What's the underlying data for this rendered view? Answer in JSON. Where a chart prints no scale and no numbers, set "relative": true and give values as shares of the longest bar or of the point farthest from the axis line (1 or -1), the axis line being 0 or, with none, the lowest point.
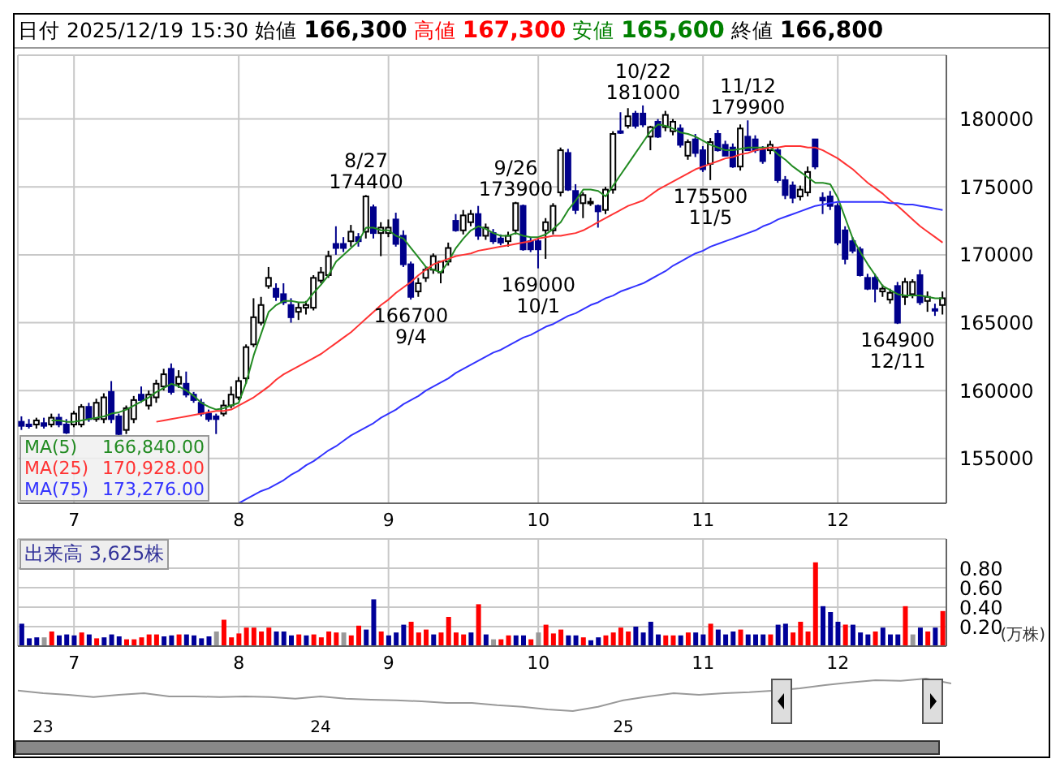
{
  "chart_data": [
    {
      "type": "candlestick",
      "title": "日付 2025/12/19 15:30 始値 166,300 高値 167,300 安値 165,600 終値 166,800",
      "categories": [
        null,
        null,
        null,
        null,
        null,
        null,
        null,
        "7",
        null,
        null,
        null,
        null,
        null,
        null,
        null,
        null,
        null,
        null,
        null,
        null,
        null,
        null,
        null,
        null,
        null,
        null,
        null,
        null,
        null,
        "8",
        null,
        null,
        null,
        null,
        null,
        null,
        null,
        null,
        null,
        null,
        null,
        null,
        null,
        null,
        null,
        null,
        null,
        null,
        null,
        "9",
        null,
        null,
        null,
        null,
        null,
        null,
        null,
        null,
        null,
        null,
        null,
        null,
        null,
        null,
        null,
        null,
        null,
        null,
        null,
        "10",
        null,
        null,
        null,
        null,
        null,
        null,
        null,
        null,
        null,
        null,
        null,
        null,
        null,
        null,
        null,
        null,
        null,
        null,
        null,
        null,
        null,
        "11",
        null,
        null,
        null,
        null,
        null,
        null,
        null,
        null,
        null,
        null,
        null,
        null,
        null,
        null,
        null,
        null,
        null,
        "12",
        null,
        null,
        null,
        null,
        null,
        null,
        null,
        null,
        null,
        null,
        null,
        null,
        null,
        null
      ],
      "ohlc": [
        [
          157700,
          158100,
          157100,
          157400
        ],
        [
          157500,
          157900,
          157200,
          157400
        ],
        [
          157500,
          158000,
          157200,
          157800
        ],
        [
          157600,
          158000,
          157200,
          157400
        ],
        [
          157500,
          158300,
          157300,
          158000
        ],
        [
          158000,
          158300,
          157300,
          157500
        ],
        [
          157500,
          157900,
          156800,
          156900
        ],
        [
          157500,
          158500,
          157300,
          158300
        ],
        [
          157500,
          159000,
          157300,
          158800
        ],
        [
          158800,
          159100,
          157700,
          157900
        ],
        [
          157900,
          159400,
          157700,
          159100
        ],
        [
          157900,
          159800,
          157600,
          159500
        ],
        [
          159900,
          160700,
          157600,
          157900
        ],
        [
          158100,
          158300,
          156600,
          156800
        ],
        [
          157100,
          158900,
          156800,
          158700
        ],
        [
          157900,
          159600,
          157600,
          159300
        ],
        [
          159700,
          160300,
          159100,
          159300
        ],
        [
          158900,
          160000,
          158600,
          159700
        ],
        [
          159500,
          160800,
          159100,
          160500
        ],
        [
          160300,
          161600,
          160000,
          161200
        ],
        [
          161600,
          162000,
          159700,
          159900
        ],
        [
          160500,
          161500,
          160200,
          161000
        ],
        [
          160500,
          161400,
          159500,
          159700
        ],
        [
          159700,
          159900,
          159100,
          159300
        ],
        [
          159100,
          159400,
          158100,
          158300
        ],
        [
          158300,
          158600,
          157700,
          157900
        ],
        [
          158100,
          158300,
          156800,
          157900
        ],
        [
          158300,
          159300,
          158100,
          158900
        ],
        [
          158900,
          160300,
          158700,
          159700
        ],
        [
          159500,
          161000,
          159300,
          160700
        ],
        [
          160900,
          163400,
          160500,
          163200
        ],
        [
          163400,
          166800,
          163200,
          165400
        ],
        [
          165000,
          166900,
          164800,
          166300
        ],
        [
          167700,
          169100,
          167500,
          168300
        ],
        [
          167500,
          167900,
          166600,
          166900
        ],
        [
          167100,
          167900,
          166300,
          166500
        ],
        [
          166300,
          166800,
          165000,
          165400
        ],
        [
          165800,
          166500,
          165200,
          166100
        ],
        [
          166100,
          166600,
          165600,
          166300
        ],
        [
          166100,
          168500,
          165900,
          168300
        ],
        [
          168100,
          169100,
          167900,
          168700
        ],
        [
          168500,
          170300,
          168300,
          169900
        ],
        [
          170800,
          172100,
          170000,
          170500
        ],
        [
          170800,
          171300,
          170200,
          170500
        ],
        [
          171000,
          172200,
          170600,
          171700
        ],
        [
          171300,
          171600,
          170600,
          171000
        ],
        [
          171700,
          174400,
          171200,
          174300
        ],
        [
          173500,
          173700,
          171200,
          171600
        ],
        [
          171600,
          172400,
          169900,
          172000
        ],
        [
          171600,
          172600,
          171300,
          172000
        ],
        [
          172600,
          173100,
          170600,
          170800
        ],
        [
          171400,
          171800,
          169100,
          169300
        ],
        [
          169300,
          169500,
          166700,
          166900
        ],
        [
          167300,
          168300,
          166900,
          167900
        ],
        [
          168300,
          169100,
          168000,
          168900
        ],
        [
          168900,
          170100,
          168600,
          169900
        ],
        [
          168700,
          169500,
          167900,
          169500
        ],
        [
          169500,
          170900,
          169200,
          170500
        ],
        [
          172500,
          173000,
          171700,
          171800
        ],
        [
          171800,
          173300,
          171500,
          172900
        ],
        [
          172400,
          173300,
          172100,
          173000
        ],
        [
          173000,
          173600,
          171100,
          171400
        ],
        [
          171400,
          172300,
          171100,
          172000
        ],
        [
          171600,
          171900,
          170800,
          171000
        ],
        [
          171200,
          171500,
          170700,
          170900
        ],
        [
          171000,
          171700,
          170600,
          171400
        ],
        [
          171800,
          173900,
          171500,
          173800
        ],
        [
          173600,
          173700,
          170300,
          170400
        ],
        [
          171000,
          171300,
          170200,
          170400
        ],
        [
          171000,
          171300,
          169000,
          170400
        ],
        [
          171800,
          172700,
          169700,
          172400
        ],
        [
          171800,
          173800,
          171500,
          173600
        ],
        [
          174600,
          177900,
          174300,
          177700
        ],
        [
          177500,
          177800,
          174700,
          174800
        ],
        [
          174700,
          175200,
          173000,
          173300
        ],
        [
          173800,
          174600,
          172700,
          174400
        ],
        [
          173900,
          174200,
          173600,
          173900
        ],
        [
          173600,
          173700,
          172000,
          173200
        ],
        [
          173300,
          175000,
          173000,
          174800
        ],
        [
          174800,
          179100,
          174500,
          178900
        ],
        [
          179100,
          180500,
          178900,
          179000
        ],
        [
          179500,
          180800,
          179300,
          180200
        ],
        [
          180400,
          180600,
          179300,
          179500
        ],
        [
          180400,
          181000,
          179400,
          179600
        ],
        [
          178700,
          179500,
          177700,
          179400
        ],
        [
          179800,
          180000,
          178600,
          178700
        ],
        [
          179400,
          180600,
          179100,
          180300
        ],
        [
          179100,
          180000,
          178800,
          179800
        ],
        [
          179300,
          179600,
          177900,
          178100
        ],
        [
          177300,
          178500,
          177000,
          178300
        ],
        [
          178500,
          178900,
          177200,
          177500
        ],
        [
          177700,
          178000,
          176100,
          176300
        ],
        [
          176700,
          178600,
          175500,
          178300
        ],
        [
          178900,
          179200,
          177600,
          177700
        ],
        [
          178100,
          178400,
          177300,
          177300
        ],
        [
          177900,
          178200,
          176400,
          176500
        ],
        [
          176500,
          179600,
          176200,
          179300
        ],
        [
          178700,
          179900,
          177700,
          177700
        ],
        [
          178500,
          178800,
          177500,
          177700
        ],
        [
          177700,
          178000,
          176700,
          176900
        ],
        [
          177700,
          178400,
          177400,
          178100
        ],
        [
          177700,
          177900,
          175300,
          175500
        ],
        [
          175500,
          175800,
          174100,
          174400
        ],
        [
          175100,
          175400,
          173800,
          174200
        ],
        [
          174300,
          175100,
          174000,
          174800
        ],
        [
          174600,
          176500,
          174300,
          176100
        ],
        [
          178500,
          178500,
          176300,
          176500
        ],
        [
          174200,
          174600,
          173000,
          174000
        ],
        [
          174300,
          174700,
          173300,
          173600
        ],
        [
          173600,
          173800,
          170700,
          170900
        ],
        [
          171800,
          172100,
          169300,
          169700
        ],
        [
          171000,
          171300,
          170100,
          170300
        ],
        [
          170400,
          170600,
          168400,
          168500
        ],
        [
          168300,
          168600,
          167400,
          167500
        ],
        [
          168300,
          168600,
          166500,
          167500
        ],
        [
          167300,
          167800,
          166900,
          167500
        ],
        [
          166700,
          167500,
          166400,
          167200
        ],
        [
          167700,
          168000,
          164900,
          165000
        ],
        [
          166900,
          168300,
          166300,
          168000
        ],
        [
          167100,
          168200,
          166800,
          168000
        ],
        [
          168500,
          168900,
          166300,
          166500
        ],
        [
          166600,
          167300,
          165800,
          166900
        ],
        [
          166000,
          166400,
          165500,
          165900
        ],
        [
          166300,
          167300,
          165600,
          166800
        ]
      ],
      "colors": [
        "#00008b",
        "#00008b",
        "#ffffff",
        "#00008b",
        "#ffffff",
        "#00008b",
        "#00008b",
        "#ffffff",
        "#ffffff",
        "#00008b",
        "#ffffff",
        "#ffffff",
        "#00008b",
        "#00008b",
        "#ffffff",
        "#ffffff",
        "#00008b",
        "#ffffff",
        "#ffffff",
        "#ffffff",
        "#00008b",
        "#ffffff",
        "#00008b",
        "#00008b",
        "#00008b",
        "#00008b",
        "#00008b",
        "#ffffff",
        "#ffffff",
        "#ffffff",
        "#ffffff",
        "#ffffff",
        "#ffffff",
        "#ffffff",
        "#00008b",
        "#00008b",
        "#00008b",
        "#ffffff",
        "#ffffff",
        "#ffffff",
        "#ffffff",
        "#ffffff",
        "#00008b",
        "#00008b",
        "#ffffff",
        "#00008b",
        "#ffffff",
        "#00008b",
        "#ffffff",
        "#ffffff",
        "#00008b",
        "#00008b",
        "#00008b",
        "#ffffff",
        "#ffffff",
        "#ffffff",
        "#ffffff",
        "#ffffff",
        "#00008b",
        "#ffffff",
        "#ffffff",
        "#00008b",
        "#ffffff",
        "#00008b",
        "#00008b",
        "#ffffff",
        "#ffffff",
        "#00008b",
        "#00008b",
        "#00008b",
        "#ffffff",
        "#ffffff",
        "#ffffff",
        "#00008b",
        "#00008b",
        "#ffffff",
        "#ffffff",
        "#00008b",
        "#ffffff",
        "#ffffff",
        "#00008b",
        "#ffffff",
        "#00008b",
        "#00008b",
        "#ffffff",
        "#00008b",
        "#ffffff",
        "#ffffff",
        "#00008b",
        "#ffffff",
        "#00008b",
        "#00008b",
        "#ffffff",
        "#00008b",
        "#00008b",
        "#00008b",
        "#ffffff",
        "#00008b",
        "#00008b",
        "#00008b",
        "#ffffff",
        "#00008b",
        "#00008b",
        "#00008b",
        "#ffffff",
        "#ffffff",
        "#00008b",
        "#00008b",
        "#00008b",
        "#00008b",
        "#00008b",
        "#00008b",
        "#00008b",
        "#00008b",
        "#00008b",
        "#ffffff",
        "#ffffff",
        "#00008b",
        "#ffffff",
        "#ffffff",
        "#00008b",
        "#ffffff",
        "#00008b",
        "#ffffff"
      ],
      "series": [
        {
          "type": "line",
          "name": "MA(5)",
          "color": "#228b22",
          "values": [
            null,
            null,
            null,
            null,
            157800,
            157800,
            157700,
            157700,
            157800,
            157900,
            158000,
            158100,
            158300,
            158400,
            158600,
            158900,
            159200,
            159500,
            159900,
            160200,
            160500,
            160300,
            160000,
            159600,
            159100,
            158800,
            158600,
            158700,
            158900,
            159100,
            160600,
            162600,
            164200,
            165800,
            166300,
            166600,
            166600,
            166500,
            166500,
            167200,
            167800,
            168500,
            169500,
            170000,
            170500,
            171000,
            172000,
            172000,
            171800,
            171800,
            171400,
            171200,
            170500,
            169800,
            169100,
            168900,
            168700,
            169500,
            170500,
            171200,
            171800,
            172100,
            171900,
            171600,
            171400,
            171400,
            171600,
            171400,
            171300,
            171300,
            171500,
            171900,
            172400,
            173300,
            174000,
            174800,
            174800,
            174700,
            174300,
            175100,
            175900,
            176700,
            177500,
            178300,
            179100,
            179600,
            179500,
            179300,
            179000,
            178900,
            178700,
            178400,
            178100,
            177900,
            177700,
            177700,
            177800,
            177900,
            177900,
            177900,
            177900,
            177400,
            177000,
            176500,
            176100,
            175700,
            175300,
            175300,
            175200,
            174200,
            172700,
            171200,
            170200,
            169300,
            168500,
            167700,
            167400,
            167100,
            167000,
            167000,
            167000,
            166900,
            166800,
            166800
          ]
        },
        {
          "type": "line",
          "name": "MA(25)",
          "color": "#ff3333",
          "values": [
            null,
            null,
            null,
            null,
            null,
            null,
            null,
            null,
            null,
            null,
            null,
            null,
            null,
            null,
            null,
            null,
            null,
            null,
            157700,
            157800,
            157900,
            158000,
            158100,
            158200,
            158300,
            158400,
            158500,
            158500,
            158600,
            158900,
            159200,
            159500,
            159900,
            160300,
            160800,
            161200,
            161500,
            161800,
            162100,
            162400,
            162700,
            163100,
            163500,
            163900,
            164300,
            164800,
            165300,
            165800,
            166300,
            166700,
            167200,
            167600,
            168000,
            168500,
            168900,
            169300,
            169500,
            169700,
            169900,
            170000,
            170100,
            170300,
            170400,
            170500,
            170600,
            170700,
            170800,
            170900,
            171000,
            171200,
            171300,
            171400,
            171400,
            171500,
            171600,
            171800,
            172100,
            172400,
            172700,
            173000,
            173300,
            173600,
            173800,
            174000,
            174400,
            174800,
            175100,
            175400,
            175700,
            176000,
            176300,
            176500,
            176700,
            176900,
            177100,
            177200,
            177400,
            177500,
            177700,
            177800,
            177900,
            177900,
            178000,
            178000,
            178000,
            177900,
            177900,
            177700,
            177400,
            177100,
            176700,
            176300,
            175800,
            175300,
            174900,
            174500,
            174000,
            173600,
            173100,
            172600,
            172100,
            171700,
            171300,
            170900
          ]
        },
        {
          "type": "line",
          "name": "MA(75)",
          "color": "#3333ff",
          "values": [
            null,
            null,
            null,
            null,
            null,
            null,
            null,
            null,
            null,
            null,
            null,
            null,
            null,
            null,
            null,
            null,
            null,
            null,
            null,
            null,
            null,
            null,
            null,
            null,
            null,
            null,
            null,
            null,
            null,
            151700,
            152000,
            152300,
            152600,
            152800,
            153100,
            153400,
            153800,
            154100,
            154500,
            154800,
            155200,
            155600,
            155900,
            156300,
            156700,
            157000,
            157300,
            157600,
            158000,
            158300,
            158600,
            159000,
            159300,
            159600,
            160000,
            160300,
            160600,
            160900,
            161300,
            161600,
            161900,
            162200,
            162500,
            162800,
            163000,
            163300,
            163600,
            163900,
            164100,
            164400,
            164700,
            164900,
            165200,
            165500,
            165700,
            166000,
            166300,
            166500,
            166800,
            167000,
            167300,
            167500,
            167700,
            167900,
            168200,
            168500,
            168800,
            169200,
            169500,
            169800,
            170100,
            170300,
            170600,
            170800,
            171000,
            171200,
            171400,
            171600,
            171800,
            172100,
            172300,
            172600,
            172800,
            173000,
            173200,
            173400,
            173600,
            173700,
            173800,
            173900,
            173900,
            173900,
            173900,
            173900,
            173900,
            173900,
            173800,
            173800,
            173700,
            173700,
            173600,
            173500,
            173400,
            173300
          ]
        }
      ],
      "annotations": [
        "166,840.00",
        "170,928.00",
        "173,276.00",
        {
          "text": "8/27\n174400",
          "y": 174400
        },
        {
          "text": "166700\n9/4",
          "y": 166700
        },
        {
          "text": "9/26\n173900",
          "y": 173900
        },
        {
          "text": "169000\n10/1",
          "y": 169000
        },
        {
          "text": "10/22\n181000",
          "y": 181000
        },
        {
          "text": "175500\n11/5",
          "y": 175500
        },
        {
          "text": "11/12\n179900",
          "y": 179900
        },
        {
          "text": "164900\n12/11",
          "y": 164900
        }
      ],
      "ylim": [
        151700,
        184700
      ],
      "yticks": [
        155000,
        160000,
        165000,
        170000,
        175000,
        180000
      ],
      "grid": true,
      "legend": "bottom left"
    },
    {
      "type": "bar",
      "title": "出来高 3,625株",
      "ylabel": "(万株)",
      "categories": [
        null,
        null,
        null,
        null,
        null,
        null,
        null,
        "7",
        null,
        null,
        null,
        null,
        null,
        null,
        null,
        null,
        null,
        null,
        null,
        null,
        null,
        null,
        null,
        null,
        null,
        null,
        null,
        null,
        null,
        "8",
        null,
        null,
        null,
        null,
        null,
        null,
        null,
        null,
        null,
        null,
        null,
        null,
        null,
        null,
        null,
        null,
        null,
        null,
        null,
        "9",
        null,
        null,
        null,
        null,
        null,
        null,
        null,
        null,
        null,
        null,
        null,
        null,
        null,
        null,
        null,
        null,
        null,
        null,
        null,
        "10",
        null,
        null,
        null,
        null,
        null,
        null,
        null,
        null,
        null,
        null,
        null,
        null,
        null,
        null,
        null,
        null,
        null,
        null,
        null,
        null,
        null,
        "11",
        null,
        null,
        null,
        null,
        null,
        null,
        null,
        null,
        null,
        null,
        null,
        null,
        null,
        null,
        null,
        null,
        null,
        "12",
        null,
        null,
        null,
        null,
        null,
        null,
        null,
        null,
        null,
        null,
        null,
        null,
        null,
        null
      ],
      "values": [
        0.23,
        0.08,
        0.09,
        0.09,
        0.15,
        0.11,
        0.12,
        0.11,
        0.14,
        0.12,
        0.08,
        0.09,
        0.12,
        0.1,
        0.07,
        0.07,
        0.09,
        0.12,
        0.12,
        0.1,
        0.11,
        0.12,
        0.12,
        0.11,
        0.08,
        0.1,
        0.15,
        0.27,
        0.09,
        0.13,
        0.19,
        0.19,
        0.15,
        0.19,
        0.15,
        0.15,
        0.11,
        0.12,
        0.11,
        0.12,
        0.09,
        0.15,
        0.14,
        0.14,
        0.11,
        0.21,
        0.17,
        0.48,
        0.15,
        0.11,
        0.14,
        0.22,
        0.25,
        0.14,
        0.17,
        0.12,
        0.14,
        0.3,
        0.14,
        0.12,
        0.14,
        0.43,
        0.12,
        0.07,
        0.07,
        0.11,
        0.11,
        0.11,
        0.07,
        0.14,
        0.22,
        0.13,
        0.17,
        0.11,
        0.11,
        0.09,
        0.06,
        0.09,
        0.11,
        0.14,
        0.19,
        0.15,
        0.2,
        0.14,
        0.25,
        0.12,
        0.11,
        0.11,
        0.11,
        0.14,
        0.14,
        0.12,
        0.23,
        0.17,
        0.12,
        0.15,
        0.17,
        0.12,
        0.12,
        0.12,
        0.12,
        0.22,
        0.23,
        0.14,
        0.25,
        0.15,
        0.86,
        0.41,
        0.35,
        0.25,
        0.22,
        0.22,
        0.14,
        0.12,
        0.15,
        0.19,
        0.12,
        0.12,
        0.41,
        0.12,
        0.19,
        0.15,
        0.19,
        0.36
      ],
      "colors": [
        "#000099",
        "#000099",
        "#000099",
        "#999999",
        "#ff0000",
        "#000099",
        "#000099",
        "#000099",
        "#ff0000",
        "#000099",
        "#ff0000",
        "#000099",
        "#000099",
        "#000099",
        "#ff0000",
        "#ff0000",
        "#ff0000",
        "#ff0000",
        "#ff0000",
        "#000099",
        "#000099",
        "#ff0000",
        "#000099",
        "#000099",
        "#000099",
        "#000099",
        "#999999",
        "#ff0000",
        "#ff0000",
        "#ff0000",
        "#ff0000",
        "#ff0000",
        "#ff0000",
        "#ff0000",
        "#000099",
        "#000099",
        "#000099",
        "#ff0000",
        "#000099",
        "#ff0000",
        "#ff0000",
        "#ff0000",
        "#ff0000",
        "#999999",
        "#ff0000",
        "#ff0000",
        "#000099",
        "#000099",
        "#ff0000",
        "#000099",
        "#000099",
        "#000099",
        "#ff0000",
        "#ff0000",
        "#ff0000",
        "#000099",
        "#ff0000",
        "#ff0000",
        "#ff0000",
        "#ff0000",
        "#000099",
        "#ff0000",
        "#000099",
        "#999999",
        "#ff0000",
        "#ff0000",
        "#000099",
        "#000099",
        "#ff0000",
        "#999999",
        "#ff0000",
        "#ff0000",
        "#ff0000",
        "#000099",
        "#000099",
        "#ff0000",
        "#000099",
        "#000099",
        "#ff0000",
        "#ff0000",
        "#ff0000",
        "#ff0000",
        "#000099",
        "#000099",
        "#000099",
        "#000099",
        "#ff0000",
        "#ff0000",
        "#000099",
        "#ff0000",
        "#000099",
        "#000099",
        "#ff0000",
        "#000099",
        "#000099",
        "#000099",
        "#ff0000",
        "#000099",
        "#000099",
        "#000099",
        "#ff0000",
        "#000099",
        "#000099",
        "#ff0000",
        "#ff0000",
        "#ff0000",
        "#ff0000",
        "#000099",
        "#000099",
        "#000099",
        "#ff0000",
        "#000099",
        "#000099",
        "#000099",
        "#ff0000",
        "#000099",
        "#000099",
        "#000099",
        "#ff0000",
        "#999999",
        "#000099",
        "#ff0000",
        "#000099",
        "#ff0000"
      ],
      "ylim": [
        0,
        1.1
      ],
      "yticks": [
        {
          "value": 0.2,
          "label": "0.20"
        },
        {
          "value": 0.4,
          "label": "0.40"
        },
        {
          "value": 0.6,
          "label": "0.60"
        },
        {
          "value": 0.8,
          "label": "0.80"
        }
      ],
      "grid": true
    },
    {
      "type": "line",
      "relative": true,
      "color": "#999999",
      "categories": [
        null,
        "23",
        null,
        null,
        null,
        null,
        null,
        null,
        null,
        null,
        null,
        null,
        "24",
        null,
        null,
        null,
        null,
        null,
        null,
        null,
        null,
        null,
        null,
        null,
        "25",
        null,
        null,
        null,
        null,
        null,
        null,
        null,
        null,
        null,
        null,
        null,
        null,
        null
      ],
      "values": [
        0.63,
        0.55,
        0.5,
        0.43,
        0.5,
        0.55,
        0.45,
        0.45,
        0.43,
        0.45,
        0.43,
        0.38,
        0.45,
        0.38,
        0.35,
        0.33,
        0.3,
        0.25,
        0.25,
        0.18,
        0.13,
        0.05,
        0,
        0.13,
        0.33,
        0.45,
        0.55,
        0.5,
        0.55,
        0.58,
        0.63,
        0.7,
        0.8,
        0.88,
        0.95,
        0.93,
        1,
        0.85
      ]
    }
  ]
}
